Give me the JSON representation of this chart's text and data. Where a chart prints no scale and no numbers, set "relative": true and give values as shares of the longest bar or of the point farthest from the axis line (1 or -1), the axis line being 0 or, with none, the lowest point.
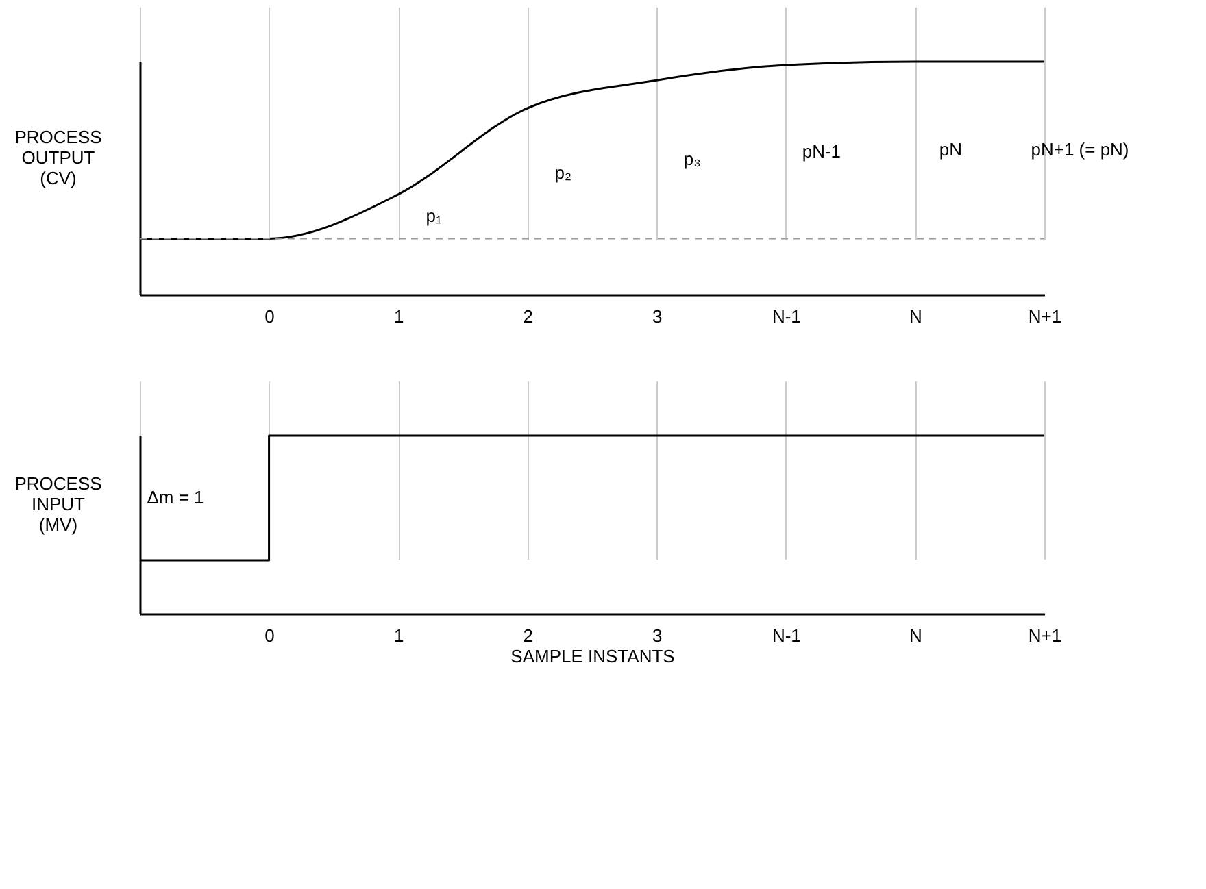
{
  "chart_data": [
    {
      "type": "line",
      "relative": true,
      "categories": [
        null,
        "0",
        "1",
        "2",
        "3",
        "N-1",
        "N",
        "N+1"
      ],
      "values": [
        0.24,
        0.24,
        0.43,
        0.8,
        0.92,
        0.985,
        1,
        1
      ],
      "color": "#000000",
      "ylabel": "PROCESS OUTPUT (CV)",
      "grid": "x",
      "tick_labels": "x",
      "marker": "none",
      "ref_lines": [
        {
          "axis": "y",
          "value": 0.24,
          "color": "#999999",
          "line_style": "dashed"
        }
      ],
      "annotations": [
        "p₁",
        "p₂",
        "p₃",
        "pN-1",
        "pN",
        "pN+1 (= pN)"
      ]
    },
    {
      "type": "step",
      "relative": true,
      "categories": [
        null,
        "0",
        "1",
        "2",
        "3",
        "N-1",
        "N",
        "N+1"
      ],
      "values": [
        0.3,
        1,
        1,
        1,
        1,
        1,
        1,
        1
      ],
      "color": "#000000",
      "ylabel": "PROCESS INPUT (MV)",
      "xlabel": "SAMPLE INSTANTS",
      "grid": "x",
      "tick_labels": "x",
      "marker": "none",
      "annotations": [
        "Δm = 1"
      ]
    }
  ]
}
